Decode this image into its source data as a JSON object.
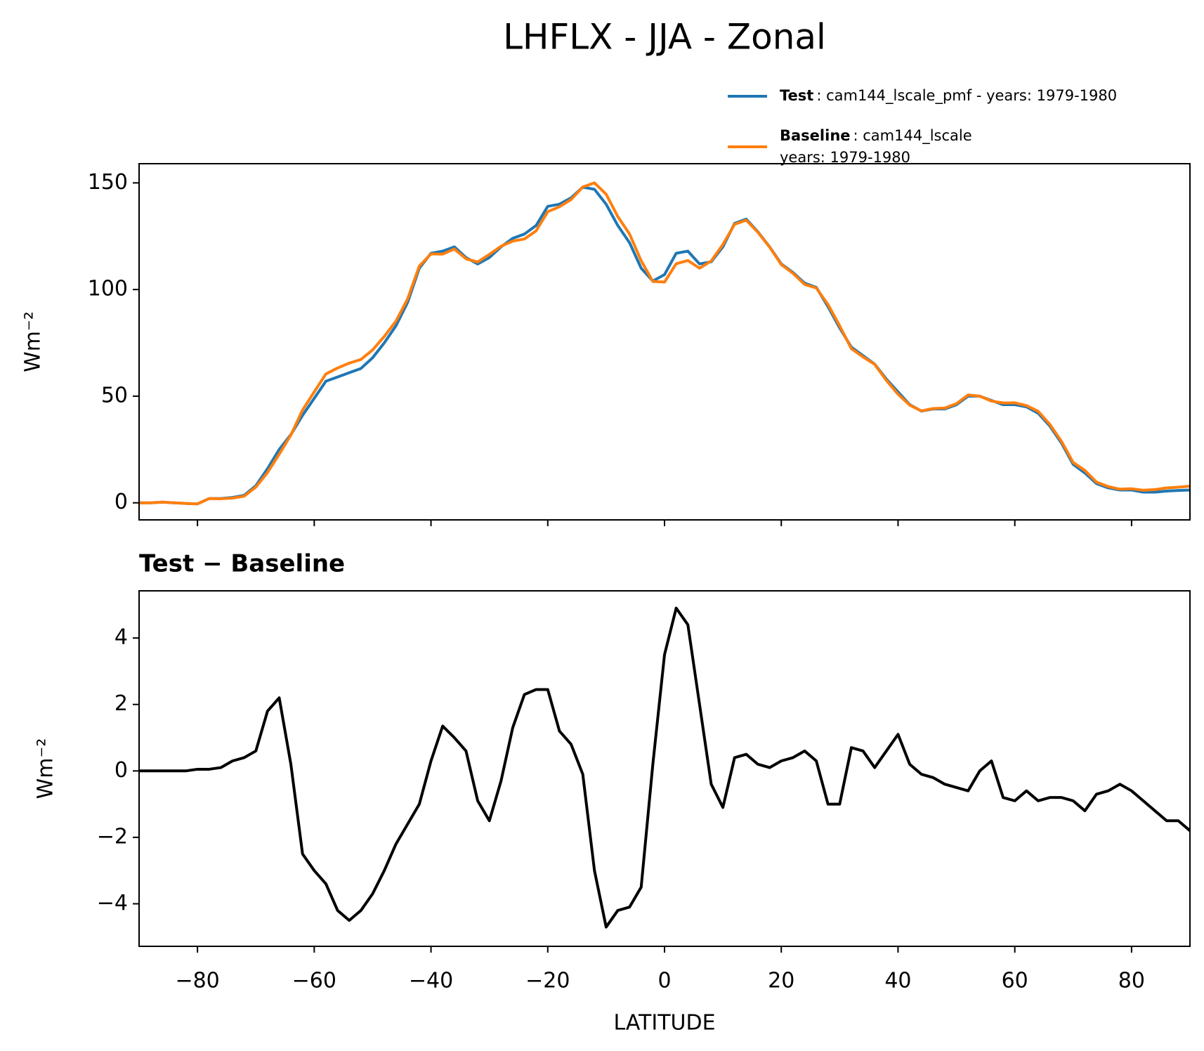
{
  "title": "LHFLX - JJA - Zonal",
  "chart_data": [
    {
      "type": "line",
      "x": [
        -90,
        -88,
        -86,
        -84,
        -82,
        -80,
        -78,
        -76,
        -74,
        -72,
        -70,
        -68,
        -66,
        -64,
        -62,
        -60,
        -58,
        -56,
        -54,
        -52,
        -50,
        -48,
        -46,
        -44,
        -42,
        -40,
        -38,
        -36,
        -34,
        -32,
        -30,
        -28,
        -26,
        -24,
        -22,
        -20,
        -18,
        -16,
        -14,
        -12,
        -10,
        -8,
        -6,
        -4,
        -2,
        0,
        2,
        4,
        6,
        8,
        10,
        12,
        14,
        16,
        18,
        20,
        22,
        24,
        26,
        28,
        30,
        32,
        34,
        36,
        38,
        40,
        42,
        44,
        46,
        48,
        50,
        52,
        54,
        56,
        58,
        60,
        62,
        64,
        66,
        68,
        70,
        72,
        74,
        76,
        78,
        80,
        82,
        84,
        86,
        88,
        90
      ],
      "series": [
        {
          "name": "Test",
          "label_lines": [
            ": cam144_lscale_pmf - years: 1979-1980"
          ],
          "color": "#1f77b4",
          "values": [
            0,
            0,
            0.3,
            0,
            -0.3,
            -0.5,
            2,
            2,
            2.5,
            3.5,
            8,
            16,
            25,
            32,
            41,
            49,
            57,
            59,
            61,
            63,
            68,
            75,
            83,
            94,
            110,
            117,
            118,
            120,
            115,
            112,
            115,
            120,
            124,
            126,
            130,
            139,
            140,
            143,
            148,
            147,
            140,
            130,
            122,
            110,
            104,
            107,
            117,
            118,
            112,
            113,
            120,
            131,
            133,
            127,
            120,
            112,
            108,
            103,
            101,
            92,
            82,
            73,
            69,
            65,
            58,
            52,
            46,
            43,
            44,
            44,
            46,
            50,
            50,
            48,
            46,
            46,
            45,
            42,
            36,
            28,
            18,
            14,
            9,
            7,
            6,
            6,
            5,
            5,
            5.5,
            5.8,
            6
          ]
        },
        {
          "name": "Baseline",
          "label_lines": [
            ": cam144_lscale",
            "years: 1979-1980"
          ],
          "color": "#ff7f0e",
          "values": [
            0,
            0,
            0.3,
            0,
            -0.3,
            -0.5,
            2,
            1.9,
            2.2,
            3.1,
            7.4,
            14.2,
            22.8,
            31.8,
            43.5,
            52,
            60.4,
            63.2,
            65.5,
            67.2,
            71.7,
            78,
            85.2,
            95.6,
            111,
            116.7,
            116.6,
            119,
            114.4,
            112.9,
            116.5,
            120.3,
            122.7,
            123.7,
            127.5,
            136.5,
            138.8,
            142.2,
            148.1,
            150,
            144.7,
            134.2,
            126.1,
            113.5,
            103.8,
            103.5,
            112.1,
            113.6,
            110,
            113.4,
            121.1,
            130.6,
            132.5,
            126.8,
            119.9,
            111.7,
            107.6,
            102.4,
            100.7,
            93,
            83,
            72.3,
            68.4,
            64.9,
            57.4,
            50.9,
            45.8,
            43.1,
            44.2,
            44.4,
            46.5,
            50.6,
            50,
            47.7,
            46.8,
            46.9,
            45.6,
            42.9,
            36.8,
            28.8,
            18.9,
            15.2,
            9.7,
            7.6,
            6.4,
            6.6,
            5.9,
            6.2,
            7,
            7.3,
            7.8
          ]
        }
      ],
      "ylabel": "Wm⁻²",
      "xlim": [
        -90,
        90
      ],
      "ylim": [
        -8,
        159
      ],
      "xticks": [
        -80,
        -60,
        -40,
        -20,
        0,
        20,
        40,
        60,
        80
      ],
      "yticks": [
        0,
        50,
        100,
        150
      ]
    },
    {
      "type": "line",
      "title": "Test − Baseline",
      "x": [
        -90,
        -88,
        -86,
        -84,
        -82,
        -80,
        -78,
        -76,
        -74,
        -72,
        -70,
        -68,
        -66,
        -64,
        -62,
        -60,
        -58,
        -56,
        -54,
        -52,
        -50,
        -48,
        -46,
        -44,
        -42,
        -40,
        -38,
        -36,
        -34,
        -32,
        -30,
        -28,
        -26,
        -24,
        -22,
        -20,
        -18,
        -16,
        -14,
        -12,
        -10,
        -8,
        -6,
        -4,
        -2,
        0,
        2,
        4,
        6,
        8,
        10,
        12,
        14,
        16,
        18,
        20,
        22,
        24,
        26,
        28,
        30,
        32,
        34,
        36,
        38,
        40,
        42,
        44,
        46,
        48,
        50,
        52,
        54,
        56,
        58,
        60,
        62,
        64,
        66,
        68,
        70,
        72,
        74,
        76,
        78,
        80,
        82,
        84,
        86,
        88,
        90
      ],
      "series": [
        {
          "color": "#000000",
          "values": [
            0,
            0,
            0,
            0,
            0,
            0.05,
            0.05,
            0.1,
            0.3,
            0.4,
            0.6,
            1.8,
            2.2,
            0.2,
            -2.5,
            -3.0,
            -3.4,
            -4.2,
            -4.5,
            -4.2,
            -3.7,
            -3.0,
            -2.2,
            -1.6,
            -1.0,
            0.3,
            1.35,
            1.0,
            0.6,
            -0.9,
            -1.5,
            -0.3,
            1.3,
            2.3,
            2.45,
            2.45,
            1.2,
            0.8,
            -0.1,
            -3.0,
            -4.7,
            -4.2,
            -4.1,
            -3.5,
            0.2,
            3.5,
            4.9,
            4.4,
            2.0,
            -0.4,
            -1.1,
            0.4,
            0.5,
            0.2,
            0.1,
            0.3,
            0.4,
            0.6,
            0.3,
            -1.0,
            -1.0,
            0.7,
            0.6,
            0.1,
            0.6,
            1.1,
            0.2,
            -0.1,
            -0.2,
            -0.4,
            -0.5,
            -0.6,
            0,
            0.3,
            -0.8,
            -0.9,
            -0.6,
            -0.9,
            -0.8,
            -0.8,
            -0.9,
            -1.2,
            -0.7,
            -0.6,
            -0.4,
            -0.6,
            -0.9,
            -1.2,
            -1.5,
            -1.5,
            -1.8
          ]
        }
      ],
      "xlabel": "LATITUDE",
      "ylabel": "Wm⁻²",
      "xlim": [
        -90,
        90
      ],
      "ylim": [
        -5.28,
        5.42
      ],
      "xticks": [
        {
          "value": -80,
          "label": "−80"
        },
        {
          "value": -60,
          "label": "−60"
        },
        {
          "value": -40,
          "label": "−40"
        },
        {
          "value": -20,
          "label": "−20"
        },
        0,
        20,
        40,
        60,
        80
      ],
      "yticks": [
        {
          "value": -4,
          "label": "−4"
        },
        {
          "value": -2,
          "label": "−2"
        },
        0,
        2,
        4
      ]
    }
  ]
}
